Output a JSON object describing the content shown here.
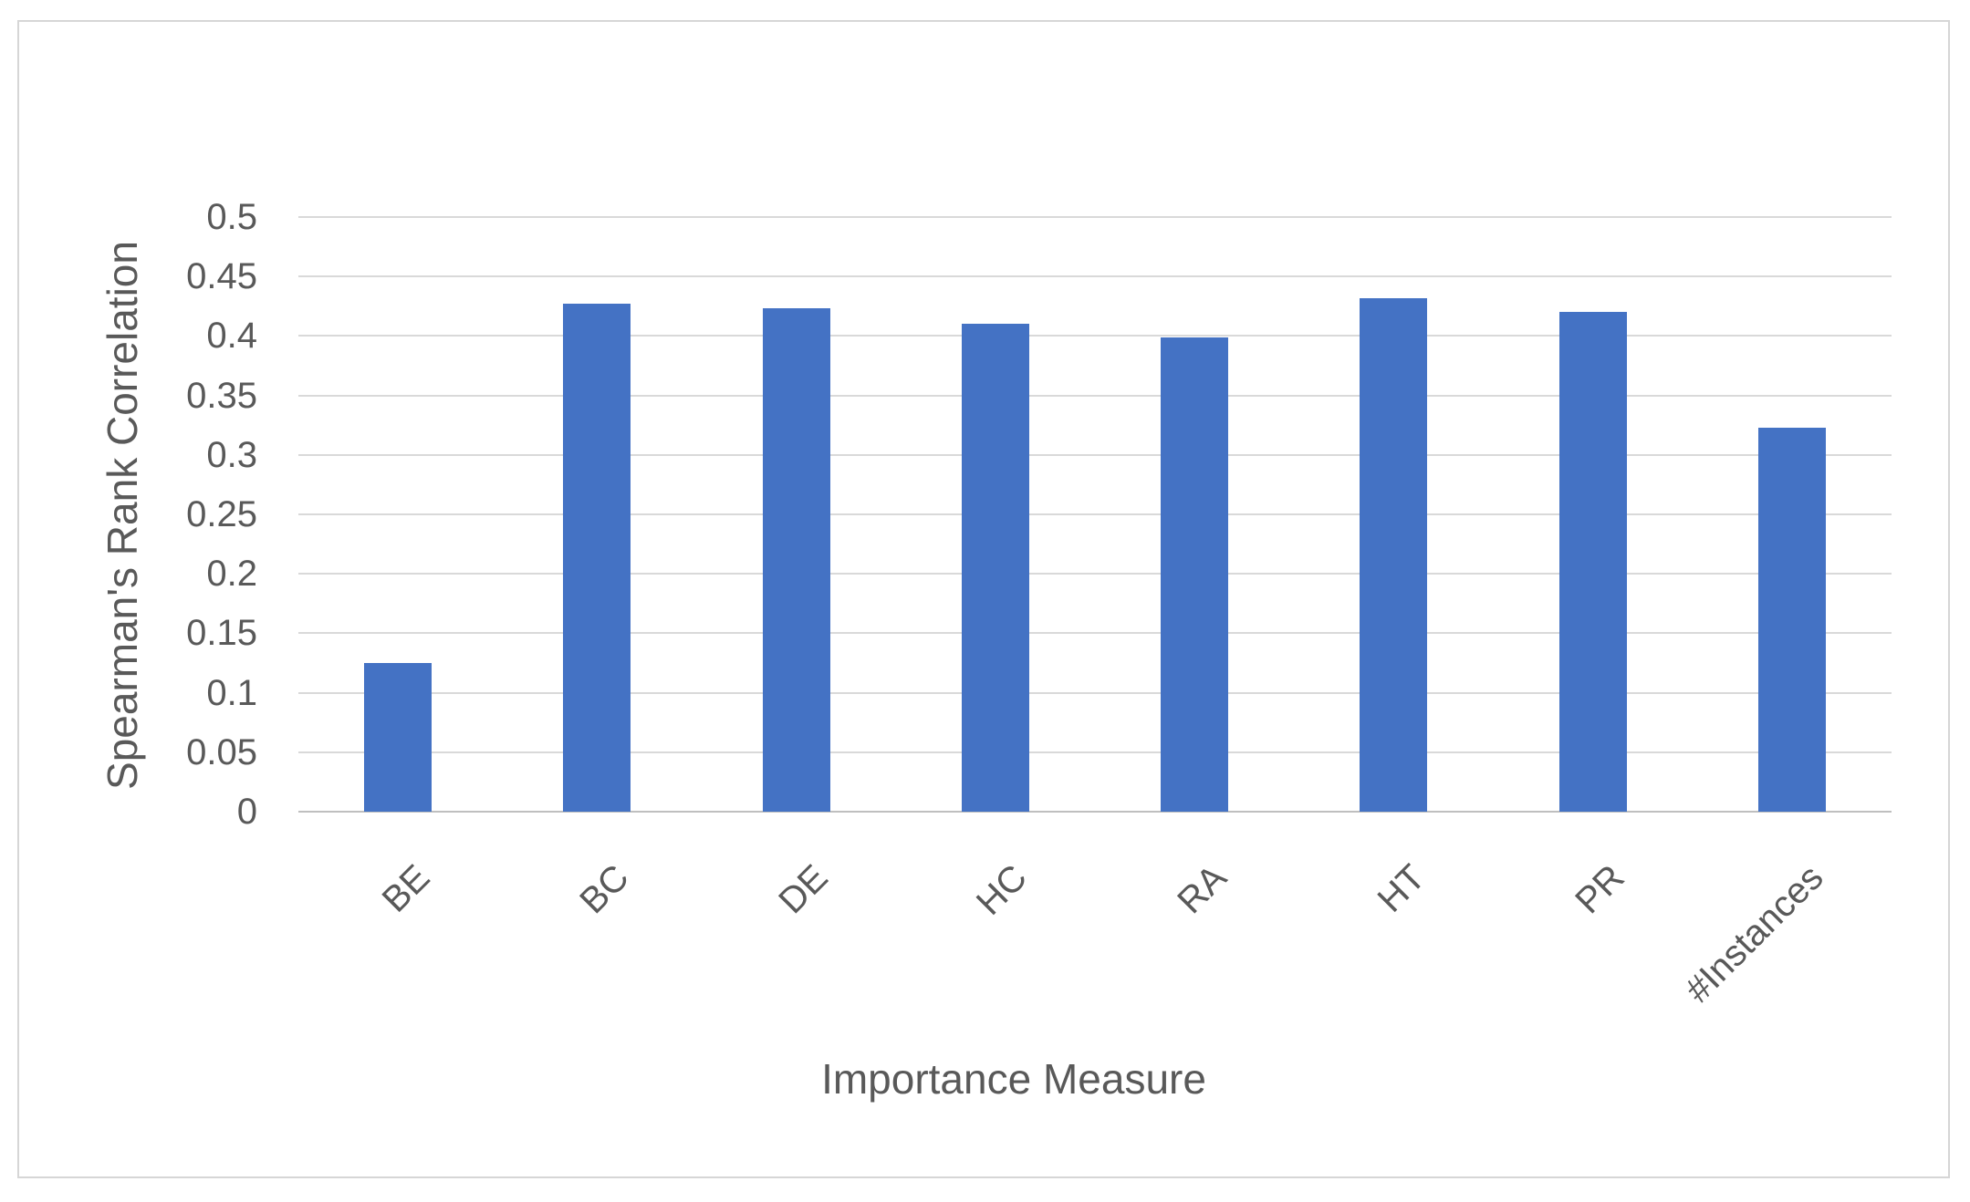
{
  "chart_data": {
    "type": "bar",
    "title": "",
    "xlabel": "Importance Measure",
    "ylabel": "Spearman's Rank Correlation",
    "categories": [
      "BE",
      "BC",
      "DE",
      "HC",
      "RA",
      "HT",
      "PR",
      "#Instances"
    ],
    "values": [
      0.125,
      0.427,
      0.423,
      0.41,
      0.399,
      0.432,
      0.42,
      0.323
    ],
    "ylim": [
      0,
      0.5
    ],
    "ytick_step": 0.05,
    "ytick_labels": [
      "0.5",
      "0.45",
      "0.4",
      "0.35",
      "0.3",
      "0.25",
      "0.2",
      "0.15",
      "0.1",
      "0.05",
      "0"
    ],
    "grid": true,
    "legend": false,
    "colors": {
      "bar": "#4472C4",
      "gridline": "#D9D9D9",
      "axis_line": "#BFBFBF",
      "text": "#595959",
      "chart_border": "#D6D6D6",
      "background": "#FFFFFF"
    }
  }
}
